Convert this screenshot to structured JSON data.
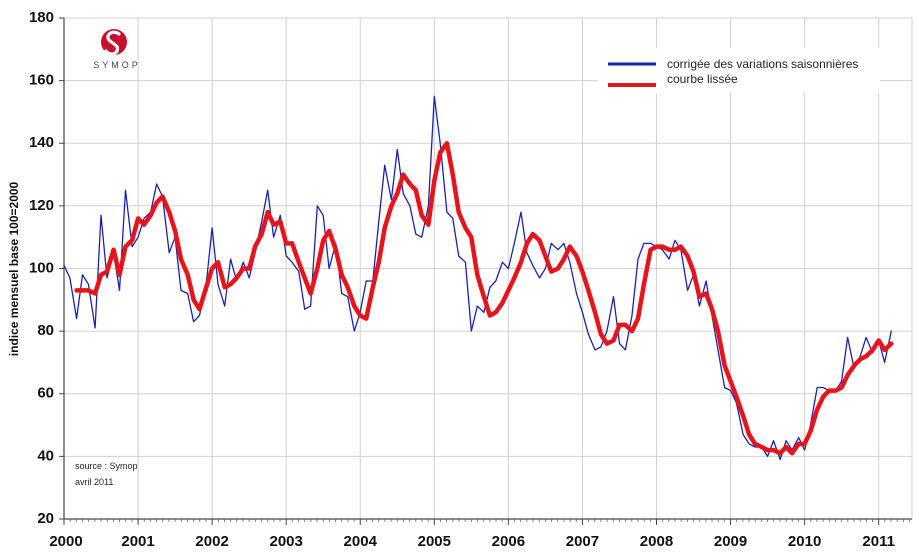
{
  "logo": {
    "text": "SYMOP",
    "color": "#c8102e"
  },
  "source_note": {
    "line1": "source : Symop",
    "line2": "avril 2011"
  },
  "chart_data": {
    "type": "line",
    "title": "",
    "xlabel": "",
    "ylabel": "indice mensuel base 100=2000",
    "xlim": [
      2000.0,
      2011.45
    ],
    "ylim": [
      20,
      180
    ],
    "x_ticks": [
      2000,
      2001,
      2002,
      2003,
      2004,
      2005,
      2006,
      2007,
      2008,
      2009,
      2010,
      2011
    ],
    "y_ticks": [
      20,
      40,
      60,
      80,
      100,
      120,
      140,
      160,
      180
    ],
    "grid": true,
    "legend_position": "top-right",
    "series": [
      {
        "name": "corrigée des variations saisonnières",
        "color": "#1a22b0",
        "points": [
          [
            2000.0,
            101
          ],
          [
            2000.08,
            97
          ],
          [
            2000.17,
            84
          ],
          [
            2000.25,
            98
          ],
          [
            2000.33,
            95
          ],
          [
            2000.42,
            81
          ],
          [
            2000.5,
            117
          ],
          [
            2000.58,
            97
          ],
          [
            2000.67,
            105
          ],
          [
            2000.75,
            93
          ],
          [
            2000.83,
            125
          ],
          [
            2000.92,
            107
          ],
          [
            2001.0,
            110
          ],
          [
            2001.08,
            116
          ],
          [
            2001.17,
            118
          ],
          [
            2001.25,
            127
          ],
          [
            2001.33,
            123
          ],
          [
            2001.42,
            105
          ],
          [
            2001.5,
            110
          ],
          [
            2001.58,
            93
          ],
          [
            2001.67,
            92
          ],
          [
            2001.75,
            83
          ],
          [
            2001.83,
            85
          ],
          [
            2001.92,
            95
          ],
          [
            2002.0,
            113
          ],
          [
            2002.08,
            95
          ],
          [
            2002.17,
            88
          ],
          [
            2002.25,
            103
          ],
          [
            2002.33,
            96
          ],
          [
            2002.42,
            102
          ],
          [
            2002.5,
            97
          ],
          [
            2002.58,
            105
          ],
          [
            2002.67,
            115
          ],
          [
            2002.75,
            125
          ],
          [
            2002.83,
            110
          ],
          [
            2002.92,
            117
          ],
          [
            2003.0,
            104
          ],
          [
            2003.08,
            102
          ],
          [
            2003.17,
            99
          ],
          [
            2003.25,
            87
          ],
          [
            2003.33,
            88
          ],
          [
            2003.42,
            120
          ],
          [
            2003.5,
            117
          ],
          [
            2003.58,
            100
          ],
          [
            2003.67,
            108
          ],
          [
            2003.75,
            92
          ],
          [
            2003.83,
            91
          ],
          [
            2003.92,
            80
          ],
          [
            2004.0,
            86
          ],
          [
            2004.08,
            96
          ],
          [
            2004.17,
            96
          ],
          [
            2004.25,
            115
          ],
          [
            2004.33,
            133
          ],
          [
            2004.42,
            122
          ],
          [
            2004.5,
            138
          ],
          [
            2004.58,
            124
          ],
          [
            2004.67,
            120
          ],
          [
            2004.75,
            111
          ],
          [
            2004.83,
            110
          ],
          [
            2004.92,
            120
          ],
          [
            2005.0,
            155
          ],
          [
            2005.08,
            140
          ],
          [
            2005.17,
            118
          ],
          [
            2005.25,
            116
          ],
          [
            2005.33,
            104
          ],
          [
            2005.42,
            102
          ],
          [
            2005.5,
            80
          ],
          [
            2005.58,
            88
          ],
          [
            2005.67,
            86
          ],
          [
            2005.75,
            94
          ],
          [
            2005.83,
            96
          ],
          [
            2005.92,
            102
          ],
          [
            2006.0,
            100
          ],
          [
            2006.08,
            108
          ],
          [
            2006.17,
            118
          ],
          [
            2006.25,
            105
          ],
          [
            2006.33,
            101
          ],
          [
            2006.42,
            97
          ],
          [
            2006.5,
            100
          ],
          [
            2006.58,
            108
          ],
          [
            2006.67,
            106
          ],
          [
            2006.75,
            108
          ],
          [
            2006.83,
            102
          ],
          [
            2006.92,
            92
          ],
          [
            2007.0,
            86
          ],
          [
            2007.08,
            79
          ],
          [
            2007.17,
            74
          ],
          [
            2007.25,
            75
          ],
          [
            2007.33,
            80
          ],
          [
            2007.42,
            91
          ],
          [
            2007.5,
            76
          ],
          [
            2007.58,
            74
          ],
          [
            2007.67,
            85
          ],
          [
            2007.75,
            103
          ],
          [
            2007.83,
            108
          ],
          [
            2007.92,
            108
          ],
          [
            2008.0,
            107
          ],
          [
            2008.08,
            106
          ],
          [
            2008.17,
            103
          ],
          [
            2008.25,
            109
          ],
          [
            2008.33,
            106
          ],
          [
            2008.42,
            93
          ],
          [
            2008.5,
            98
          ],
          [
            2008.58,
            88
          ],
          [
            2008.67,
            96
          ],
          [
            2008.75,
            85
          ],
          [
            2008.83,
            74
          ],
          [
            2008.92,
            62
          ],
          [
            2009.0,
            61
          ],
          [
            2009.08,
            57
          ],
          [
            2009.17,
            47
          ],
          [
            2009.25,
            44
          ],
          [
            2009.33,
            43
          ],
          [
            2009.42,
            43
          ],
          [
            2009.5,
            40
          ],
          [
            2009.58,
            45
          ],
          [
            2009.67,
            39
          ],
          [
            2009.75,
            45
          ],
          [
            2009.83,
            42
          ],
          [
            2009.92,
            46
          ],
          [
            2010.0,
            42
          ],
          [
            2010.08,
            50
          ],
          [
            2010.17,
            62
          ],
          [
            2010.25,
            62
          ],
          [
            2010.33,
            61
          ],
          [
            2010.42,
            61
          ],
          [
            2010.5,
            64
          ],
          [
            2010.58,
            78
          ],
          [
            2010.67,
            68
          ],
          [
            2010.75,
            72
          ],
          [
            2010.83,
            78
          ],
          [
            2010.92,
            73
          ],
          [
            2011.0,
            77
          ],
          [
            2011.08,
            70
          ],
          [
            2011.17,
            80
          ]
        ]
      },
      {
        "name": "courbe lissée",
        "color": "#e8141b",
        "points": [
          [
            2000.17,
            93
          ],
          [
            2000.25,
            93
          ],
          [
            2000.33,
            93
          ],
          [
            2000.42,
            92
          ],
          [
            2000.5,
            98
          ],
          [
            2000.58,
            99
          ],
          [
            2000.67,
            106
          ],
          [
            2000.75,
            98
          ],
          [
            2000.83,
            107
          ],
          [
            2000.92,
            109
          ],
          [
            2001.0,
            116
          ],
          [
            2001.08,
            114
          ],
          [
            2001.17,
            117
          ],
          [
            2001.25,
            121
          ],
          [
            2001.33,
            123
          ],
          [
            2001.42,
            118
          ],
          [
            2001.5,
            112
          ],
          [
            2001.58,
            103
          ],
          [
            2001.67,
            98
          ],
          [
            2001.75,
            90
          ],
          [
            2001.83,
            87
          ],
          [
            2001.92,
            94
          ],
          [
            2002.0,
            100
          ],
          [
            2002.08,
            102
          ],
          [
            2002.17,
            94
          ],
          [
            2002.25,
            95
          ],
          [
            2002.33,
            97
          ],
          [
            2002.42,
            100
          ],
          [
            2002.5,
            100
          ],
          [
            2002.58,
            107
          ],
          [
            2002.67,
            111
          ],
          [
            2002.75,
            118
          ],
          [
            2002.83,
            114
          ],
          [
            2002.92,
            115
          ],
          [
            2003.0,
            108
          ],
          [
            2003.08,
            108
          ],
          [
            2003.17,
            102
          ],
          [
            2003.25,
            97
          ],
          [
            2003.33,
            92
          ],
          [
            2003.42,
            100
          ],
          [
            2003.5,
            109
          ],
          [
            2003.58,
            112
          ],
          [
            2003.67,
            106
          ],
          [
            2003.75,
            98
          ],
          [
            2003.83,
            94
          ],
          [
            2003.92,
            88
          ],
          [
            2004.0,
            85
          ],
          [
            2004.08,
            84
          ],
          [
            2004.17,
            94
          ],
          [
            2004.25,
            102
          ],
          [
            2004.33,
            113
          ],
          [
            2004.42,
            120
          ],
          [
            2004.5,
            124
          ],
          [
            2004.58,
            130
          ],
          [
            2004.67,
            127
          ],
          [
            2004.75,
            125
          ],
          [
            2004.83,
            117
          ],
          [
            2004.92,
            114
          ],
          [
            2005.0,
            128
          ],
          [
            2005.08,
            137
          ],
          [
            2005.17,
            140
          ],
          [
            2005.25,
            130
          ],
          [
            2005.33,
            118
          ],
          [
            2005.42,
            113
          ],
          [
            2005.5,
            110
          ],
          [
            2005.58,
            98
          ],
          [
            2005.67,
            91
          ],
          [
            2005.75,
            85
          ],
          [
            2005.83,
            86
          ],
          [
            2005.92,
            89
          ],
          [
            2006.0,
            93
          ],
          [
            2006.08,
            97
          ],
          [
            2006.17,
            102
          ],
          [
            2006.25,
            108
          ],
          [
            2006.33,
            111
          ],
          [
            2006.42,
            109
          ],
          [
            2006.5,
            104
          ],
          [
            2006.58,
            99
          ],
          [
            2006.67,
            100
          ],
          [
            2006.75,
            103
          ],
          [
            2006.83,
            107
          ],
          [
            2006.92,
            104
          ],
          [
            2007.0,
            99
          ],
          [
            2007.08,
            93
          ],
          [
            2007.17,
            86
          ],
          [
            2007.25,
            79
          ],
          [
            2007.33,
            76
          ],
          [
            2007.42,
            77
          ],
          [
            2007.5,
            82
          ],
          [
            2007.58,
            82
          ],
          [
            2007.67,
            80
          ],
          [
            2007.75,
            84
          ],
          [
            2007.83,
            95
          ],
          [
            2007.92,
            106
          ],
          [
            2008.0,
            107
          ],
          [
            2008.08,
            107
          ],
          [
            2008.17,
            106
          ],
          [
            2008.25,
            106
          ],
          [
            2008.33,
            107
          ],
          [
            2008.42,
            104
          ],
          [
            2008.5,
            99
          ],
          [
            2008.58,
            91
          ],
          [
            2008.67,
            92
          ],
          [
            2008.75,
            87
          ],
          [
            2008.83,
            80
          ],
          [
            2008.92,
            69
          ],
          [
            2009.0,
            64
          ],
          [
            2009.08,
            59
          ],
          [
            2009.17,
            53
          ],
          [
            2009.25,
            47
          ],
          [
            2009.33,
            44
          ],
          [
            2009.42,
            43
          ],
          [
            2009.5,
            42
          ],
          [
            2009.58,
            42
          ],
          [
            2009.67,
            41
          ],
          [
            2009.75,
            43
          ],
          [
            2009.83,
            41
          ],
          [
            2009.92,
            44
          ],
          [
            2010.0,
            44
          ],
          [
            2010.08,
            48
          ],
          [
            2010.17,
            55
          ],
          [
            2010.25,
            59
          ],
          [
            2010.33,
            61
          ],
          [
            2010.42,
            61
          ],
          [
            2010.5,
            62
          ],
          [
            2010.58,
            66
          ],
          [
            2010.67,
            69
          ],
          [
            2010.75,
            71
          ],
          [
            2010.83,
            72
          ],
          [
            2010.92,
            74
          ],
          [
            2011.0,
            77
          ],
          [
            2011.08,
            74
          ],
          [
            2011.17,
            76
          ]
        ]
      }
    ]
  }
}
